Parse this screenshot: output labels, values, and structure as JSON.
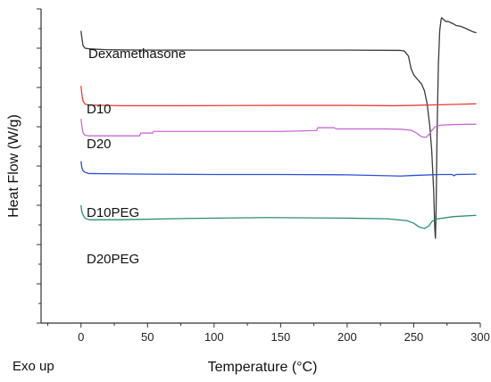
{
  "chart_data": {
    "type": "line",
    "title": "",
    "xlabel": "Temperature (°C)",
    "ylabel": "Heat Flow (W/g)",
    "note": "Exo up",
    "xlim": [
      -30,
      300
    ],
    "xticks": [
      0,
      50,
      100,
      150,
      200,
      250,
      300
    ],
    "xtick_labels": [
      "0",
      "50",
      "100",
      "150",
      "200",
      "250",
      "300"
    ],
    "ylim": [
      0,
      100
    ],
    "y_ticks_labeled": false,
    "grid": false,
    "legend": "none; series labelled inline above each trace",
    "series": [
      {
        "name": "Dexamethasone",
        "color": "#3a3a3a",
        "points": [
          [
            0,
            93
          ],
          [
            0.6,
            91
          ],
          [
            1.5,
            88.4
          ],
          [
            3,
            87.5
          ],
          [
            6,
            87.3
          ],
          [
            20,
            87
          ],
          [
            50,
            86.9
          ],
          [
            100,
            86.9
          ],
          [
            150,
            86.9
          ],
          [
            200,
            86.9
          ],
          [
            240,
            86.8
          ],
          [
            243,
            86.6
          ],
          [
            246,
            85
          ],
          [
            248,
            81
          ],
          [
            250,
            79
          ],
          [
            253,
            77.5
          ],
          [
            256,
            76
          ],
          [
            258,
            74
          ],
          [
            260,
            70
          ],
          [
            262,
            63
          ],
          [
            263.5,
            55
          ],
          [
            265,
            42
          ],
          [
            265.8,
            30
          ],
          [
            266.3,
            27
          ],
          [
            266.8,
            36
          ],
          [
            267.5,
            60
          ],
          [
            268.5,
            82
          ],
          [
            269.5,
            93
          ],
          [
            270.5,
            96.5
          ],
          [
            271,
            97.2
          ],
          [
            272,
            96.8
          ],
          [
            274,
            96
          ],
          [
            276,
            96
          ],
          [
            278,
            95.6
          ],
          [
            280,
            95.2
          ],
          [
            282,
            94.7
          ],
          [
            285,
            94.5
          ],
          [
            288,
            94
          ],
          [
            291,
            93.4
          ],
          [
            294,
            92.8
          ],
          [
            297,
            92.4
          ]
        ]
      },
      {
        "name": "D10",
        "color": "#e8403c",
        "points": [
          [
            0,
            75.5
          ],
          [
            0.6,
            73
          ],
          [
            1.5,
            70.7
          ],
          [
            3,
            69.7
          ],
          [
            6,
            69.4
          ],
          [
            30,
            69.2
          ],
          [
            80,
            69.2
          ],
          [
            150,
            69.3
          ],
          [
            200,
            69.3
          ],
          [
            235,
            69.2
          ],
          [
            250,
            69.3
          ],
          [
            280,
            69.6
          ],
          [
            297,
            69.8
          ]
        ]
      },
      {
        "name": "D20",
        "color": "#c96ad6",
        "points": [
          [
            0,
            65
          ],
          [
            0.6,
            63
          ],
          [
            1.5,
            60.6
          ],
          [
            3,
            59.8
          ],
          [
            6,
            59.6
          ],
          [
            44,
            59.6
          ],
          [
            45,
            60.5
          ],
          [
            54,
            60.5
          ],
          [
            54.5,
            61
          ],
          [
            90,
            61
          ],
          [
            150,
            61
          ],
          [
            177,
            61.3
          ],
          [
            178,
            62.2
          ],
          [
            190,
            62.2
          ],
          [
            192,
            61.8
          ],
          [
            230,
            61.8
          ],
          [
            240,
            61.7
          ],
          [
            248,
            61.4
          ],
          [
            252,
            60.5
          ],
          [
            256,
            59.3
          ],
          [
            259,
            59.1
          ],
          [
            261,
            59.8
          ],
          [
            263,
            61
          ],
          [
            266,
            62.5
          ],
          [
            270,
            63
          ],
          [
            280,
            63.2
          ],
          [
            297,
            63.3
          ]
        ]
      },
      {
        "name": "D10PEG",
        "color": "#2e4fd6",
        "points": [
          [
            0,
            51.5
          ],
          [
            0.6,
            49.5
          ],
          [
            1.5,
            48.5
          ],
          [
            3,
            48
          ],
          [
            6,
            47.6
          ],
          [
            50,
            47.4
          ],
          [
            100,
            47.3
          ],
          [
            150,
            47.3
          ],
          [
            200,
            47.2
          ],
          [
            230,
            46.9
          ],
          [
            240,
            46.8
          ],
          [
            250,
            47
          ],
          [
            270,
            47.3
          ],
          [
            279,
            47.3
          ],
          [
            280,
            46.9
          ],
          [
            282,
            47.3
          ],
          [
            297,
            47.4
          ]
        ]
      },
      {
        "name": "D20PEG",
        "color": "#2d8f6b",
        "points": [
          [
            0,
            37.5
          ],
          [
            0.6,
            35.5
          ],
          [
            1.5,
            34.5
          ],
          [
            3,
            33.4
          ],
          [
            6,
            32.9
          ],
          [
            30,
            32.9
          ],
          [
            80,
            33.3
          ],
          [
            140,
            33.6
          ],
          [
            200,
            33.4
          ],
          [
            230,
            33.2
          ],
          [
            245,
            32.6
          ],
          [
            250,
            31.8
          ],
          [
            254,
            30.6
          ],
          [
            258,
            30.1
          ],
          [
            261,
            30.8
          ],
          [
            264,
            32.5
          ],
          [
            268,
            33.2
          ],
          [
            280,
            33.9
          ],
          [
            297,
            34.3
          ]
        ]
      }
    ]
  }
}
